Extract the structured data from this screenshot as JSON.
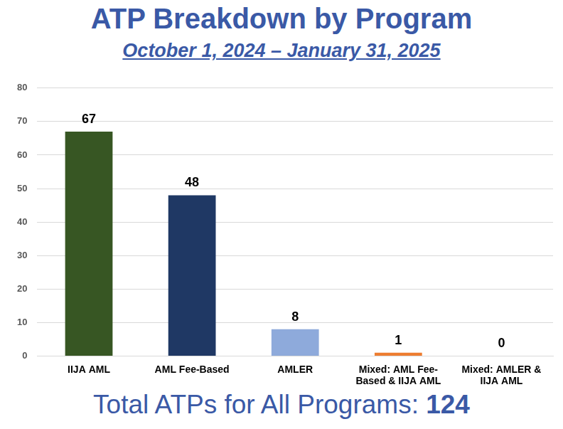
{
  "chart_data": {
    "type": "bar",
    "title": "ATP Breakdown by Program",
    "subtitle": "October 1, 2024 – January 31, 2025",
    "categories": [
      "IIJA AML",
      "AML Fee-Based",
      "AMLER",
      "Mixed: AML Fee-Based & IIJA AML",
      "Mixed: AMLER & IIJA AML"
    ],
    "values": [
      67,
      48,
      8,
      1,
      0
    ],
    "colors": [
      "#375623",
      "#1f3864",
      "#8eaadb",
      "#ed7d31",
      "#a5a5a5"
    ],
    "ylim": [
      0,
      80
    ],
    "yticks": [
      0,
      10,
      20,
      30,
      40,
      50,
      60,
      70,
      80
    ],
    "grid": true,
    "data_labels": true,
    "annotation": "Total ATPs for All Programs: 124"
  }
}
